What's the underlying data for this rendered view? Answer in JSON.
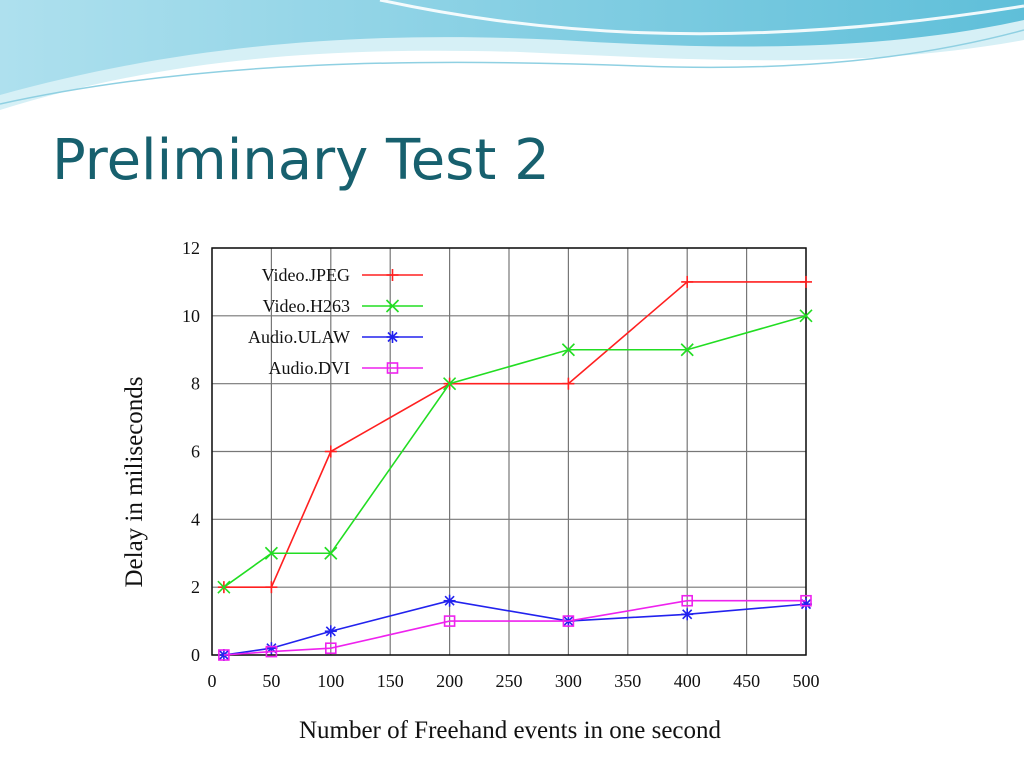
{
  "slide": {
    "title": "Preliminary Test 2"
  },
  "colors": {
    "title": "#17606e",
    "wave_light": "#c5e8f2",
    "wave_mid": "#7fcbe0",
    "wave_dark": "#2ea5c7"
  },
  "chart_data": {
    "type": "line",
    "xlabel": "Number of Freehand events in one second",
    "ylabel": "Delay in miliseconds",
    "xlim": [
      0,
      500
    ],
    "ylim": [
      0,
      12
    ],
    "xticks": [
      0,
      50,
      100,
      150,
      200,
      250,
      300,
      350,
      400,
      450,
      500
    ],
    "yticks": [
      0,
      2,
      4,
      6,
      8,
      10,
      12
    ],
    "grid": true,
    "legend": "top-left",
    "x": [
      10,
      50,
      100,
      200,
      300,
      400,
      500
    ],
    "series": [
      {
        "name": "Video.JPEG",
        "color": "#ff2020",
        "marker": "plus",
        "values": [
          2,
          2,
          6,
          8,
          8,
          11,
          11
        ]
      },
      {
        "name": "Video.H263",
        "color": "#22dd22",
        "marker": "cross",
        "values": [
          2,
          3,
          3,
          8,
          9,
          9,
          10
        ]
      },
      {
        "name": "Audio.ULAW",
        "color": "#2222ee",
        "marker": "star",
        "values": [
          0,
          0.2,
          0.7,
          1.6,
          1.0,
          1.2,
          1.5
        ]
      },
      {
        "name": "Audio.DVI",
        "color": "#ee22ee",
        "marker": "square",
        "values": [
          0,
          0.1,
          0.2,
          1.0,
          1.0,
          1.6,
          1.6
        ]
      }
    ]
  }
}
